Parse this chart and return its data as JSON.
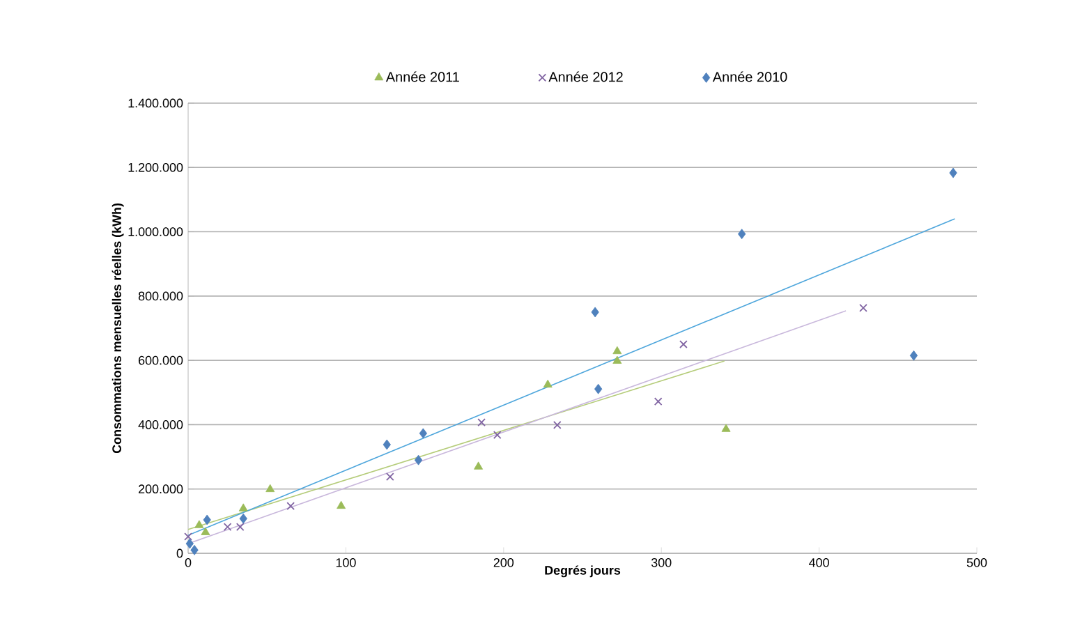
{
  "chart_data": {
    "type": "scatter",
    "xlabel": "Degrés jours",
    "ylabel": "Consommations  mensuelles réelles (kWh)",
    "xlim": [
      0,
      500
    ],
    "xticks": [
      0,
      100,
      200,
      300,
      400,
      500
    ],
    "ylim": [
      0,
      1400000
    ],
    "yticks": [
      {
        "value": 0,
        "label": "0"
      },
      {
        "value": 200000,
        "label": "200.000"
      },
      {
        "value": 400000,
        "label": "400.000"
      },
      {
        "value": 600000,
        "label": "600.000"
      },
      {
        "value": 800000,
        "label": "800.000"
      },
      {
        "value": 1000000,
        "label": "1.000.000"
      },
      {
        "value": 1200000,
        "label": "1.200.000"
      },
      {
        "value": 1400000,
        "label": "1.400.000"
      }
    ],
    "grid": "y",
    "legend": "top",
    "series": [
      {
        "name": "Année 2011",
        "marker": "triangle",
        "color": "#9bbb59",
        "x": [
          7,
          11,
          35,
          52,
          97,
          184,
          228,
          272,
          272,
          341
        ],
        "values": [
          87000,
          65000,
          139000,
          199000,
          147000,
          269000,
          524000,
          628000,
          598000,
          386000
        ]
      },
      {
        "name": "Année 2012",
        "marker": "cross",
        "color": "#8064a2",
        "x": [
          0,
          25,
          33,
          65,
          128,
          186,
          196,
          234,
          298,
          314,
          428
        ],
        "values": [
          52000,
          82000,
          82000,
          147000,
          238000,
          407000,
          368000,
          399000,
          472000,
          650000,
          763000
        ]
      },
      {
        "name": "Année 2010",
        "marker": "diamond",
        "color": "#4f81bd",
        "x": [
          1,
          4,
          12,
          35,
          126,
          146,
          149,
          258,
          260,
          351,
          460,
          485
        ],
        "values": [
          30000,
          10000,
          104000,
          108000,
          338000,
          290000,
          373000,
          750000,
          511000,
          993000,
          615000,
          1183000
        ]
      },
      {
        "type": "line",
        "marker": "none",
        "color": "#b5cc7a",
        "x": [
          0,
          340
        ],
        "values": [
          74000,
          598000
        ]
      },
      {
        "type": "line",
        "marker": "none",
        "color": "#c9b8dc",
        "x": [
          0,
          417
        ],
        "values": [
          30000,
          754000
        ]
      },
      {
        "type": "line",
        "marker": "none",
        "color": "#4ea6dc",
        "x": [
          0,
          486
        ],
        "values": [
          56000,
          1040000
        ]
      }
    ]
  }
}
